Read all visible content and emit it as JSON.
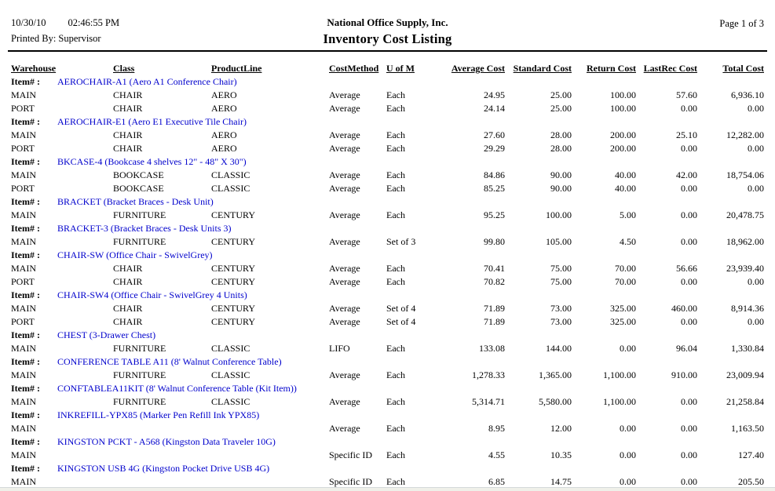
{
  "header": {
    "date": "10/30/10",
    "time": "02:46:55 PM",
    "printed_by": "Printed By: Supervisor",
    "company": "National Office Supply, Inc.",
    "title": "Inventory Cost Listing",
    "page": "Page 1 of 3"
  },
  "labels": {
    "item_prefix": "Item# :"
  },
  "colors": {
    "item_link": "#0000CC",
    "rule": "#000000",
    "bottom_strip": "#eff0e9"
  },
  "columns": [
    {
      "key": "warehouse",
      "label": "Warehouse",
      "align": "left"
    },
    {
      "key": "class",
      "label": "Class",
      "align": "left"
    },
    {
      "key": "product_line",
      "label": "ProductLine",
      "align": "left"
    },
    {
      "key": "cost_method",
      "label": "CostMethod",
      "align": "left"
    },
    {
      "key": "uom",
      "label": "U of M",
      "align": "left"
    },
    {
      "key": "average_cost",
      "label": "Average Cost",
      "align": "right"
    },
    {
      "key": "standard_cost",
      "label": "Standard Cost",
      "align": "right"
    },
    {
      "key": "return_cost",
      "label": "Return Cost",
      "align": "right"
    },
    {
      "key": "last_rec_cost",
      "label": "LastRec Cost",
      "align": "right"
    },
    {
      "key": "total_cost",
      "label": "Total Cost",
      "align": "right"
    }
  ],
  "items": [
    {
      "code": "AEROCHAIR-A1 (Aero A1 Conference Chair)",
      "rows": [
        {
          "warehouse": "MAIN",
          "class": "CHAIR",
          "product_line": "AERO",
          "cost_method": "Average",
          "uom": "Each",
          "average_cost": "24.95",
          "standard_cost": "25.00",
          "return_cost": "100.00",
          "last_rec_cost": "57.60",
          "total_cost": "6,936.10"
        },
        {
          "warehouse": "PORT",
          "class": "CHAIR",
          "product_line": "AERO",
          "cost_method": "Average",
          "uom": "Each",
          "average_cost": "24.14",
          "standard_cost": "25.00",
          "return_cost": "100.00",
          "last_rec_cost": "0.00",
          "total_cost": "0.00"
        }
      ]
    },
    {
      "code": "AEROCHAIR-E1 (Aero E1 Executive Tile Chair)",
      "rows": [
        {
          "warehouse": "MAIN",
          "class": "CHAIR",
          "product_line": "AERO",
          "cost_method": "Average",
          "uom": "Each",
          "average_cost": "27.60",
          "standard_cost": "28.00",
          "return_cost": "200.00",
          "last_rec_cost": "25.10",
          "total_cost": "12,282.00"
        },
        {
          "warehouse": "PORT",
          "class": "CHAIR",
          "product_line": "AERO",
          "cost_method": "Average",
          "uom": "Each",
          "average_cost": "29.29",
          "standard_cost": "28.00",
          "return_cost": "200.00",
          "last_rec_cost": "0.00",
          "total_cost": "0.00"
        }
      ]
    },
    {
      "code": "BKCASE-4 (Bookcase 4 shelves 12\" - 48\" X 30\")",
      "rows": [
        {
          "warehouse": "MAIN",
          "class": "BOOKCASE",
          "product_line": "CLASSIC",
          "cost_method": "Average",
          "uom": "Each",
          "average_cost": "84.86",
          "standard_cost": "90.00",
          "return_cost": "40.00",
          "last_rec_cost": "42.00",
          "total_cost": "18,754.06"
        },
        {
          "warehouse": "PORT",
          "class": "BOOKCASE",
          "product_line": "CLASSIC",
          "cost_method": "Average",
          "uom": "Each",
          "average_cost": "85.25",
          "standard_cost": "90.00",
          "return_cost": "40.00",
          "last_rec_cost": "0.00",
          "total_cost": "0.00"
        }
      ]
    },
    {
      "code": "BRACKET (Bracket Braces - Desk Unit)",
      "rows": [
        {
          "warehouse": "MAIN",
          "class": "FURNITURE",
          "product_line": "CENTURY",
          "cost_method": "Average",
          "uom": "Each",
          "average_cost": "95.25",
          "standard_cost": "100.00",
          "return_cost": "5.00",
          "last_rec_cost": "0.00",
          "total_cost": "20,478.75"
        }
      ]
    },
    {
      "code": "BRACKET-3 (Bracket Braces - Desk Units 3)",
      "rows": [
        {
          "warehouse": "MAIN",
          "class": "FURNITURE",
          "product_line": "CENTURY",
          "cost_method": "Average",
          "uom": "Set of 3",
          "average_cost": "99.80",
          "standard_cost": "105.00",
          "return_cost": "4.50",
          "last_rec_cost": "0.00",
          "total_cost": "18,962.00"
        }
      ]
    },
    {
      "code": "CHAIR-SW (Office Chair - SwivelGrey)",
      "rows": [
        {
          "warehouse": "MAIN",
          "class": "CHAIR",
          "product_line": "CENTURY",
          "cost_method": "Average",
          "uom": "Each",
          "average_cost": "70.41",
          "standard_cost": "75.00",
          "return_cost": "70.00",
          "last_rec_cost": "56.66",
          "total_cost": "23,939.40"
        },
        {
          "warehouse": "PORT",
          "class": "CHAIR",
          "product_line": "CENTURY",
          "cost_method": "Average",
          "uom": "Each",
          "average_cost": "70.82",
          "standard_cost": "75.00",
          "return_cost": "70.00",
          "last_rec_cost": "0.00",
          "total_cost": "0.00"
        }
      ]
    },
    {
      "code": "CHAIR-SW4 (Office Chair - SwivelGrey 4 Units)",
      "rows": [
        {
          "warehouse": "MAIN",
          "class": "CHAIR",
          "product_line": "CENTURY",
          "cost_method": "Average",
          "uom": "Set of 4",
          "average_cost": "71.89",
          "standard_cost": "73.00",
          "return_cost": "325.00",
          "last_rec_cost": "460.00",
          "total_cost": "8,914.36"
        },
        {
          "warehouse": "PORT",
          "class": "CHAIR",
          "product_line": "CENTURY",
          "cost_method": "Average",
          "uom": "Set of 4",
          "average_cost": "71.89",
          "standard_cost": "73.00",
          "return_cost": "325.00",
          "last_rec_cost": "0.00",
          "total_cost": "0.00"
        }
      ]
    },
    {
      "code": "CHEST (3-Drawer Chest)",
      "rows": [
        {
          "warehouse": "MAIN",
          "class": "FURNITURE",
          "product_line": "CLASSIC",
          "cost_method": "LIFO",
          "uom": "Each",
          "average_cost": "133.08",
          "standard_cost": "144.00",
          "return_cost": "0.00",
          "last_rec_cost": "96.04",
          "total_cost": "1,330.84"
        }
      ]
    },
    {
      "code": "CONFERENCE TABLE A11 (8' Walnut Conference Table)",
      "rows": [
        {
          "warehouse": "MAIN",
          "class": "FURNITURE",
          "product_line": "CLASSIC",
          "cost_method": "Average",
          "uom": "Each",
          "average_cost": "1,278.33",
          "standard_cost": "1,365.00",
          "return_cost": "1,100.00",
          "last_rec_cost": "910.00",
          "total_cost": "23,009.94"
        }
      ]
    },
    {
      "code": "CONFTABLEA11KIT (8' Walnut Conference Table (Kit Item))",
      "rows": [
        {
          "warehouse": "MAIN",
          "class": "FURNITURE",
          "product_line": "CLASSIC",
          "cost_method": "Average",
          "uom": "Each",
          "average_cost": "5,314.71",
          "standard_cost": "5,580.00",
          "return_cost": "1,100.00",
          "last_rec_cost": "0.00",
          "total_cost": "21,258.84"
        }
      ]
    },
    {
      "code": "INKREFILL-YPX85 (Marker Pen Refill Ink YPX85)",
      "rows": [
        {
          "warehouse": "MAIN",
          "class": "",
          "product_line": "",
          "cost_method": "Average",
          "uom": "Each",
          "average_cost": "8.95",
          "standard_cost": "12.00",
          "return_cost": "0.00",
          "last_rec_cost": "0.00",
          "total_cost": "1,163.50"
        }
      ]
    },
    {
      "code": "KINGSTON PCKT - A568 (Kingston Data Traveler 10G)",
      "rows": [
        {
          "warehouse": "MAIN",
          "class": "",
          "product_line": "",
          "cost_method": "Specific ID",
          "uom": "Each",
          "average_cost": "4.55",
          "standard_cost": "10.35",
          "return_cost": "0.00",
          "last_rec_cost": "0.00",
          "total_cost": "127.40"
        }
      ]
    },
    {
      "code": "KINGSTON USB 4G (Kingston Pocket Drive USB 4G)",
      "rows": [
        {
          "warehouse": "MAIN",
          "class": "",
          "product_line": "",
          "cost_method": "Specific ID",
          "uom": "Each",
          "average_cost": "6.85",
          "standard_cost": "14.75",
          "return_cost": "0.00",
          "last_rec_cost": "0.00",
          "total_cost": "205.50"
        }
      ]
    }
  ]
}
